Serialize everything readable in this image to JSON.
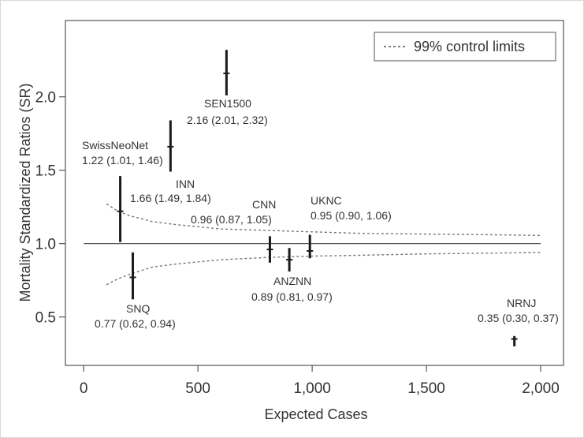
{
  "chart_data": {
    "type": "scatter",
    "subtype": "funnel-plot",
    "title": "",
    "xlabel": "Expected Cases",
    "ylabel": "Mortality Standardized Ratios  (SR)",
    "xlim": [
      -80,
      2100
    ],
    "ylim": [
      0.17,
      2.52
    ],
    "xticks": [
      0,
      500,
      1000,
      1500,
      2000
    ],
    "xtick_labels": [
      "0",
      "500",
      "1,000",
      "1,500",
      "2,000"
    ],
    "yticks": [
      0.5,
      1.0,
      1.5,
      2.0
    ],
    "ytick_labels": [
      "0.5",
      "1.0",
      "1.5",
      "2.0"
    ],
    "reference_line": 1.0,
    "legend": {
      "label": "99% control limits",
      "position": "top-right"
    },
    "control_limits": {
      "upper": [
        [
          100,
          1.27
        ],
        [
          150,
          1.22
        ],
        [
          200,
          1.19
        ],
        [
          300,
          1.15
        ],
        [
          400,
          1.13
        ],
        [
          600,
          1.1
        ],
        [
          800,
          1.09
        ],
        [
          1000,
          1.08
        ],
        [
          1200,
          1.07
        ],
        [
          1500,
          1.065
        ],
        [
          1800,
          1.06
        ],
        [
          2000,
          1.055
        ]
      ],
      "lower": [
        [
          100,
          0.72
        ],
        [
          150,
          0.76
        ],
        [
          200,
          0.79
        ],
        [
          300,
          0.84
        ],
        [
          400,
          0.86
        ],
        [
          600,
          0.89
        ],
        [
          800,
          0.905
        ],
        [
          1000,
          0.915
        ],
        [
          1200,
          0.92
        ],
        [
          1500,
          0.93
        ],
        [
          1800,
          0.935
        ],
        [
          2000,
          0.94
        ]
      ]
    },
    "points": [
      {
        "name": "SwissNeoNet",
        "stat": "1.22 (1.01, 1.46)",
        "x": 160,
        "sr": 1.22,
        "lo": 1.01,
        "hi": 1.46
      },
      {
        "name": "SNQ",
        "stat": "0.77 (0.62, 0.94)",
        "x": 215,
        "sr": 0.77,
        "lo": 0.62,
        "hi": 0.94
      },
      {
        "name": "INN",
        "stat": "1.66 (1.49, 1.84)",
        "x": 380,
        "sr": 1.66,
        "lo": 1.49,
        "hi": 1.84
      },
      {
        "name": "SEN1500",
        "stat": "2.16 (2.01, 2.32)",
        "x": 625,
        "sr": 2.16,
        "lo": 2.01,
        "hi": 2.32
      },
      {
        "name": "CNN",
        "stat": "0.96 (0.87, 1.05)",
        "x": 815,
        "sr": 0.96,
        "lo": 0.87,
        "hi": 1.05
      },
      {
        "name": "ANZNN",
        "stat": "0.89 (0.81, 0.97)",
        "x": 900,
        "sr": 0.89,
        "lo": 0.81,
        "hi": 0.97
      },
      {
        "name": "UKNC",
        "stat": "0.95 (0.90, 1.06)",
        "x": 990,
        "sr": 0.95,
        "lo": 0.9,
        "hi": 1.06
      },
      {
        "name": "NRNJ",
        "stat": "0.35 (0.30, 0.37)",
        "x": 1885,
        "sr": 0.35,
        "lo": 0.3,
        "hi": 0.37
      }
    ]
  }
}
